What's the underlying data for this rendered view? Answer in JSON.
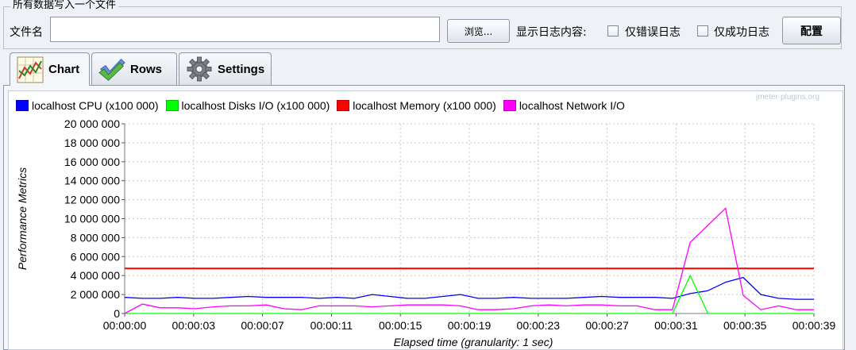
{
  "file_section": {
    "legend": "所有数据写入一个文件",
    "file_label": "文件名",
    "file_value": "",
    "browse_label": "浏览...",
    "log_label": "显示日志内容:",
    "errors_label": "仅错误日志",
    "errors_checked": false,
    "success_label": "仅成功日志",
    "success_checked": false,
    "config_label": "配置"
  },
  "tabs": [
    {
      "label": "Chart",
      "icon": "chart-icon",
      "active": true
    },
    {
      "label": "Rows",
      "icon": "checkmark-icon",
      "active": false
    },
    {
      "label": "Settings",
      "icon": "gear-icon",
      "active": false
    }
  ],
  "watermark": "jmeter-plugins.org",
  "colors": {
    "cpu": "#0000ff",
    "disks": "#00ff00",
    "memory": "#ff0000",
    "network": "#ff00ff"
  },
  "chart_data": {
    "type": "line",
    "xlabel": "Elapsed time (granularity: 1 sec)",
    "ylabel": "Performance Metrics",
    "ylim": [
      0,
      20000000
    ],
    "xlim": [
      0,
      39
    ],
    "grid": true,
    "legend_position": "top",
    "y_ticks": [
      "0",
      "2 000 000",
      "4 000 000",
      "6 000 000",
      "8 000 000",
      "10 000 000",
      "12 000 000",
      "14 000 000",
      "16 000 000",
      "18 000 000",
      "20 000 000"
    ],
    "x_ticks": [
      "00:00:00",
      "00:00:03",
      "00:00:07",
      "00:00:11",
      "00:00:15",
      "00:00:19",
      "00:00:23",
      "00:00:27",
      "00:00:31",
      "00:00:35",
      "00:00:39"
    ],
    "series": [
      {
        "name": "localhost CPU (x100 000)",
        "color": "#0000ff",
        "x": [
          0,
          1,
          2,
          3,
          4,
          5,
          6,
          7,
          8,
          9,
          10,
          11,
          12,
          13,
          14,
          15,
          16,
          17,
          18,
          19,
          20,
          21,
          22,
          23,
          24,
          25,
          26,
          27,
          28,
          29,
          30,
          31,
          32,
          33,
          34,
          35,
          36,
          37,
          38,
          39
        ],
        "values": [
          1700000,
          1600000,
          1600000,
          1700000,
          1600000,
          1600000,
          1700000,
          1800000,
          1700000,
          1700000,
          1700000,
          1600000,
          1700000,
          1600000,
          2000000,
          1800000,
          1600000,
          1600000,
          1800000,
          2000000,
          1600000,
          1600000,
          1700000,
          1600000,
          1600000,
          1600000,
          1700000,
          1800000,
          1700000,
          1700000,
          1700000,
          1600000,
          2100000,
          2400000,
          3300000,
          3800000,
          2000000,
          1600000,
          1500000,
          1500000
        ]
      },
      {
        "name": "localhost Disks I/O (x100 000)",
        "color": "#00ff00",
        "x": [
          0,
          1,
          2,
          3,
          4,
          5,
          6,
          7,
          8,
          9,
          10,
          11,
          12,
          13,
          14,
          15,
          16,
          17,
          18,
          19,
          20,
          21,
          22,
          23,
          24,
          25,
          26,
          27,
          28,
          29,
          30,
          31,
          32,
          33,
          34,
          35,
          36,
          37,
          38,
          39
        ],
        "values": [
          0,
          0,
          0,
          0,
          0,
          0,
          0,
          0,
          0,
          0,
          0,
          0,
          0,
          0,
          0,
          0,
          0,
          0,
          0,
          0,
          0,
          0,
          0,
          0,
          0,
          0,
          0,
          0,
          0,
          0,
          0,
          0,
          4000000,
          0,
          0,
          0,
          0,
          0,
          0,
          0
        ]
      },
      {
        "name": "localhost Memory (x100 000)",
        "color": "#ff0000",
        "x": [
          0,
          39
        ],
        "values": [
          4750000,
          4750000
        ]
      },
      {
        "name": "localhost Network I/O",
        "color": "#ff00ff",
        "x": [
          0,
          1,
          2,
          3,
          4,
          5,
          6,
          7,
          8,
          9,
          10,
          11,
          12,
          13,
          14,
          15,
          16,
          17,
          18,
          19,
          20,
          21,
          22,
          23,
          24,
          25,
          26,
          27,
          28,
          29,
          30,
          31,
          32,
          33,
          34,
          35,
          36,
          37,
          38,
          39
        ],
        "values": [
          0,
          1000000,
          600000,
          600000,
          500000,
          700000,
          800000,
          800000,
          900000,
          500000,
          400000,
          800000,
          800000,
          800000,
          700000,
          800000,
          900000,
          900000,
          900000,
          800000,
          400000,
          400000,
          500000,
          800000,
          900000,
          800000,
          900000,
          900000,
          800000,
          800000,
          400000,
          400000,
          7500000,
          9300000,
          11100000,
          1900000,
          400000,
          800000,
          400000,
          400000
        ]
      }
    ]
  }
}
